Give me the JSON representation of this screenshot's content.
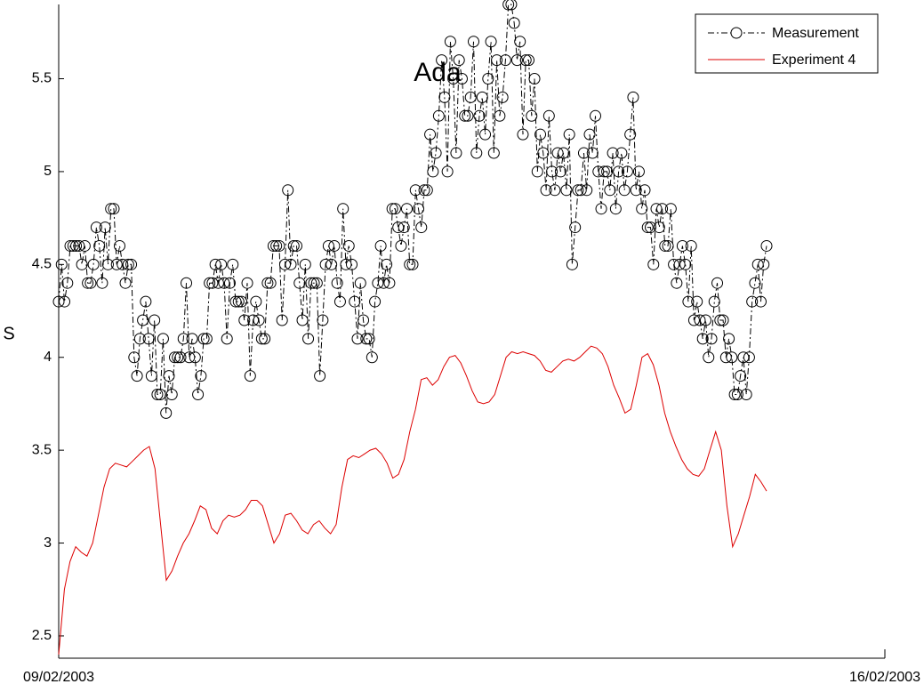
{
  "chart_data": {
    "type": "line",
    "ylabel": "S",
    "annotations": [
      "Ada"
    ],
    "xticks": [
      "09/02/2003",
      "16/02/2003"
    ],
    "ylim": [
      2.38,
      5.9
    ],
    "yticks": [
      2.5,
      3,
      3.5,
      4,
      4.5,
      5,
      5.5
    ],
    "grid": false,
    "legend": "upper right",
    "series": [
      {
        "name": "Measurement",
        "color": "#000000",
        "marker": "o",
        "linestyle": "dashdot",
        "values": [
          4.3,
          4.5,
          4.3,
          4.4,
          4.6,
          4.6,
          4.6,
          4.6,
          4.5,
          4.6,
          4.4,
          4.4,
          4.5,
          4.7,
          4.6,
          4.4,
          4.7,
          4.5,
          4.8,
          4.8,
          4.5,
          4.6,
          4.5,
          4.4,
          4.5,
          4.5,
          4.0,
          3.9,
          4.1,
          4.2,
          4.3,
          4.1,
          3.9,
          4.2,
          3.8,
          3.8,
          4.1,
          3.7,
          3.9,
          3.8,
          4.0,
          4.0,
          4.0,
          4.1,
          4.4,
          4.0,
          4.1,
          4.0,
          3.8,
          3.9,
          4.1,
          4.1,
          4.4,
          4.4,
          4.5,
          4.4,
          4.5,
          4.4,
          4.1,
          4.4,
          4.5,
          4.3,
          4.3,
          4.3,
          4.2,
          4.4,
          3.9,
          4.2,
          4.3,
          4.2,
          4.1,
          4.1,
          4.4,
          4.4,
          4.6,
          4.6,
          4.6,
          4.2,
          4.5,
          4.9,
          4.5,
          4.6,
          4.6,
          4.4,
          4.2,
          4.5,
          4.1,
          4.4,
          4.4,
          4.4,
          3.9,
          4.2,
          4.5,
          4.6,
          4.5,
          4.6,
          4.4,
          4.3,
          4.8,
          4.5,
          4.6,
          4.5,
          4.3,
          4.1,
          4.4,
          4.2,
          4.1,
          4.1,
          4.0,
          4.3,
          4.4,
          4.6,
          4.4,
          4.5,
          4.4,
          4.8,
          4.8,
          4.7,
          4.6,
          4.7,
          4.8,
          4.5,
          4.5,
          4.9,
          4.8,
          4.7,
          4.9,
          4.9,
          5.2,
          5.0,
          5.1,
          5.3,
          5.6,
          5.4,
          5.0,
          5.7,
          5.5,
          5.1,
          5.6,
          5.5,
          5.3,
          5.3,
          5.4,
          5.7,
          5.1,
          5.3,
          5.4,
          5.2,
          5.5,
          5.7,
          5.1,
          5.6,
          5.3,
          5.4,
          5.6,
          5.9,
          5.9,
          5.8,
          5.6,
          5.7,
          5.2,
          5.6,
          5.6,
          5.3,
          5.5,
          5.0,
          5.2,
          5.1,
          4.9,
          5.3,
          5.0,
          4.9,
          5.1,
          5.0,
          5.1,
          4.9,
          5.2,
          4.5,
          4.7,
          4.9,
          4.9,
          5.1,
          4.9,
          5.2,
          5.1,
          5.3,
          5.0,
          4.8,
          5.0,
          5.0,
          4.9,
          5.1,
          4.8,
          5.0,
          5.1,
          4.9,
          5.0,
          5.2,
          5.4,
          4.9,
          5.0,
          4.8,
          4.9,
          4.7,
          4.7,
          4.5,
          4.8,
          4.7,
          4.8,
          4.6,
          4.6,
          4.8,
          4.5,
          4.4,
          4.5,
          4.6,
          4.5,
          4.3,
          4.6,
          4.2,
          4.3,
          4.2,
          4.1,
          4.2,
          4.0,
          4.1,
          4.3,
          4.4,
          4.2,
          4.2,
          4.0,
          4.1,
          4.0,
          3.8,
          3.8,
          3.9,
          4.0,
          3.8,
          4.0,
          4.3,
          4.4,
          4.5,
          4.3,
          4.5,
          4.6
        ]
      },
      {
        "name": "Experiment 4",
        "color": "#dd0000",
        "marker": "none",
        "linestyle": "solid",
        "values": [
          2.4,
          2.75,
          2.9,
          2.98,
          2.95,
          2.93,
          3.0,
          3.15,
          3.3,
          3.4,
          3.43,
          3.42,
          3.41,
          3.44,
          3.47,
          3.5,
          3.52,
          3.4,
          3.1,
          2.8,
          2.85,
          2.93,
          3.0,
          3.05,
          3.12,
          3.2,
          3.18,
          3.08,
          3.05,
          3.12,
          3.15,
          3.14,
          3.15,
          3.18,
          3.23,
          3.23,
          3.2,
          3.1,
          3.0,
          3.05,
          3.15,
          3.16,
          3.12,
          3.07,
          3.05,
          3.1,
          3.12,
          3.08,
          3.05,
          3.1,
          3.3,
          3.45,
          3.47,
          3.46,
          3.48,
          3.5,
          3.51,
          3.48,
          3.43,
          3.35,
          3.37,
          3.45,
          3.6,
          3.72,
          3.88,
          3.89,
          3.85,
          3.88,
          3.95,
          4.0,
          4.01,
          3.97,
          3.9,
          3.82,
          3.76,
          3.75,
          3.76,
          3.8,
          3.9,
          4.0,
          4.03,
          4.02,
          4.03,
          4.02,
          4.01,
          3.98,
          3.93,
          3.92,
          3.95,
          3.98,
          3.99,
          3.98,
          4.0,
          4.03,
          4.06,
          4.05,
          4.02,
          3.95,
          3.85,
          3.78,
          3.7,
          3.72,
          3.85,
          4.0,
          4.02,
          3.96,
          3.85,
          3.7,
          3.6,
          3.52,
          3.45,
          3.4,
          3.37,
          3.36,
          3.4,
          3.5,
          3.6,
          3.5,
          3.2,
          2.98,
          3.05,
          3.15,
          3.25,
          3.37,
          3.33,
          3.28
        ]
      }
    ]
  }
}
